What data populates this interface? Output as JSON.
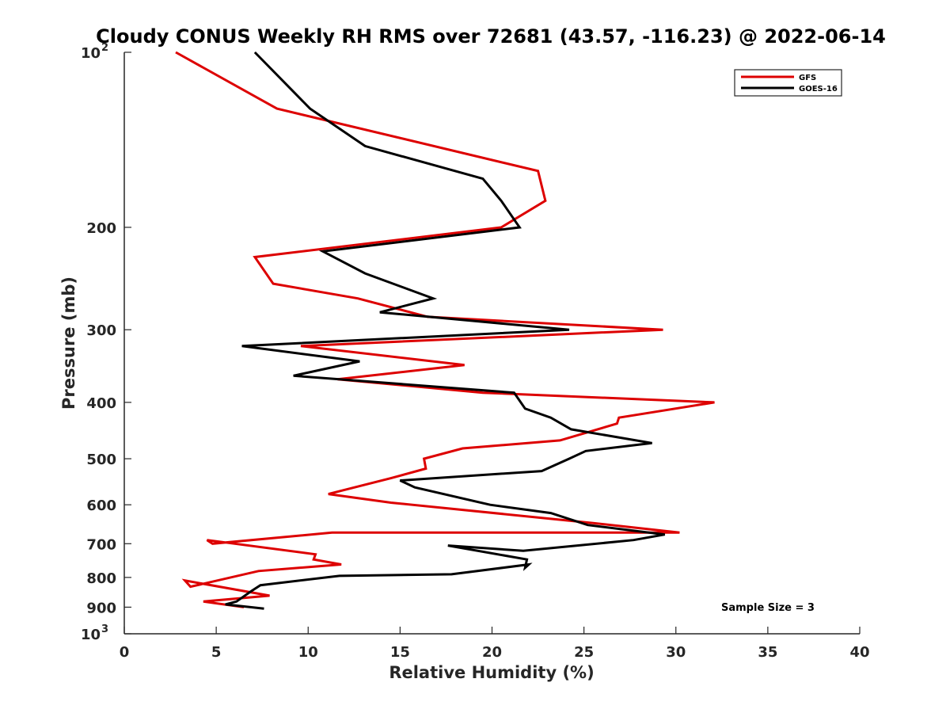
{
  "chart_data": {
    "type": "line",
    "title": "Cloudy CONUS Weekly RH RMS over 72681 (43.57, -116.23) @ 2022-06-14",
    "xlabel": "Relative Humidity (%)",
    "ylabel": "Pressure (mb)",
    "xlim": [
      0,
      40
    ],
    "ylim": [
      100,
      1000
    ],
    "yscale": "log",
    "yaxis_direction": "reversed",
    "x_ticks": [
      "0",
      "5",
      "10",
      "15",
      "20",
      "25",
      "30",
      "35",
      "40"
    ],
    "y_ticks": [
      {
        "value": 100,
        "base": "10",
        "exp": "2"
      },
      {
        "value": 200,
        "label": "200"
      },
      {
        "value": 300,
        "label": "300"
      },
      {
        "value": 400,
        "label": "400"
      },
      {
        "value": 500,
        "label": "500"
      },
      {
        "value": 600,
        "label": "600"
      },
      {
        "value": 700,
        "label": "700"
      },
      {
        "value": 800,
        "label": "800"
      },
      {
        "value": 900,
        "label": "900"
      },
      {
        "value": 1000,
        "base": "10",
        "exp": "3"
      }
    ],
    "legend_position": "top-right",
    "annotation": "Sample Size = 3",
    "grid": false,
    "series": [
      {
        "name": "GFS",
        "color": "#dd0000",
        "rh": [
          2.8,
          8.3,
          22.5,
          22.9,
          20.5,
          7.1,
          8.1,
          12.7,
          16.5,
          29.3,
          9.6,
          18.5,
          11.6,
          19.5,
          32.1,
          26.9,
          26.8,
          23.7,
          18.4,
          16.3,
          16.4,
          14.5,
          11.1,
          14.5,
          25.5,
          30.2,
          11.3,
          4.8,
          4.5,
          10.4,
          10.3,
          11.8,
          7.3,
          3.6,
          3.3,
          7.9,
          4.3,
          6.5
        ],
        "pressure": [
          100,
          125,
          160,
          180,
          200,
          225,
          250,
          265,
          285,
          300,
          320,
          345,
          365,
          385,
          400,
          425,
          435,
          465,
          480,
          500,
          520,
          540,
          575,
          595,
          645,
          670,
          670,
          700,
          690,
          730,
          745,
          760,
          780,
          830,
          810,
          860,
          880,
          900
        ]
      },
      {
        "name": "GOES-16",
        "color": "#000000",
        "rh": [
          7.1,
          10.1,
          13.1,
          19.5,
          20.5,
          21.5,
          10.8,
          13.1,
          16.8,
          13.9,
          24.2,
          6.4,
          12.8,
          9.2,
          21.2,
          21.8,
          23.2,
          24.3,
          28.7,
          25.1,
          24.2,
          22.7,
          15.0,
          15.8,
          19.9,
          23.2,
          25.2,
          29.4,
          27.7,
          21.7,
          17.6,
          21.9,
          21.8,
          22.0,
          17.8,
          11.7,
          7.4,
          6.9,
          6.1,
          5.5,
          7.6
        ],
        "pressure": [
          100,
          125,
          145,
          165,
          180,
          200,
          220,
          240,
          265,
          280,
          300,
          320,
          340,
          360,
          385,
          410,
          425,
          445,
          470,
          485,
          500,
          525,
          545,
          560,
          600,
          620,
          650,
          675,
          690,
          720,
          705,
          745,
          770,
          760,
          790,
          795,
          825,
          845,
          880,
          890,
          905
        ]
      }
    ]
  }
}
